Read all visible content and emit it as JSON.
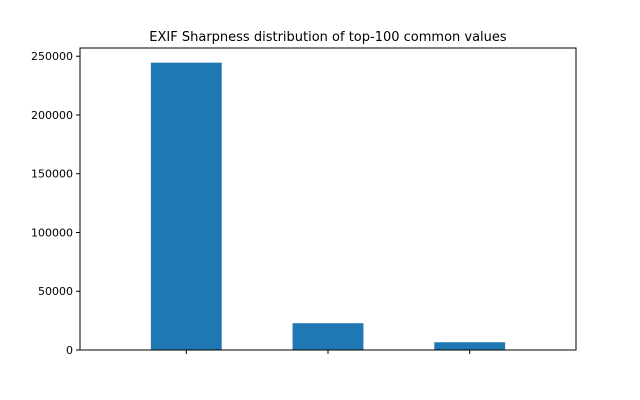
{
  "chart_data": {
    "type": "bar",
    "title": "EXIF Sharpness distribution of top-100 common values",
    "xlabel": "",
    "ylabel": "",
    "categories": [
      "",
      "",
      ""
    ],
    "values": [
      244500,
      22800,
      6600
    ],
    "ylim": [
      0,
      257000
    ],
    "yticks": [
      0,
      50000,
      100000,
      150000,
      200000,
      250000
    ],
    "ytick_labels": [
      "0",
      "50000",
      "100000",
      "150000",
      "200000",
      "250000"
    ],
    "grid": false,
    "legend": "none",
    "bar_color": "#1f77b4"
  }
}
